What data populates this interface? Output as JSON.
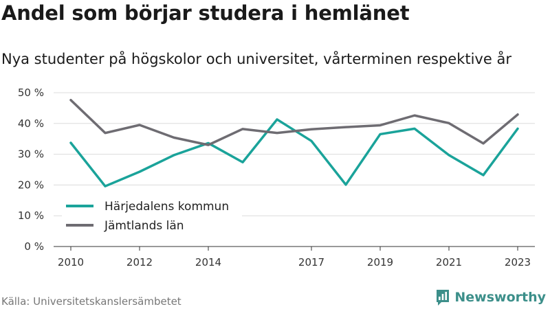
{
  "title": "Andel som börjar studera i hemlänet",
  "subtitle": "Nya studenter på högskolor och universitet, vårterminen respektive år",
  "source": "Källa: Universitetskanslersämbetet",
  "brand": {
    "name": "Newsworthy",
    "color": "#3c8f8a"
  },
  "chart_data": {
    "type": "line",
    "x": [
      2010,
      2011,
      2012,
      2013,
      2014,
      2015,
      2016,
      2017,
      2018,
      2019,
      2020,
      2021,
      2022,
      2023
    ],
    "xticks": [
      {
        "x": 2010,
        "label": "2010"
      },
      {
        "x": 2012,
        "label": "2012"
      },
      {
        "x": 2014,
        "label": "2014"
      },
      {
        "x": 2017,
        "label": "2017"
      },
      {
        "x": 2019,
        "label": "2019"
      },
      {
        "x": 2021,
        "label": "2021"
      },
      {
        "x": 2023,
        "label": "2023"
      }
    ],
    "yticks": [
      {
        "y": 0,
        "label": "0 %"
      },
      {
        "y": 10,
        "label": "10 %"
      },
      {
        "y": 20,
        "label": "20 %"
      },
      {
        "y": 30,
        "label": "30 %"
      },
      {
        "y": 40,
        "label": "40 %"
      },
      {
        "y": 50,
        "label": "50 %"
      }
    ],
    "xlim": [
      2009.5,
      2023.5
    ],
    "ylim": [
      0,
      52
    ],
    "grid": "horizontal",
    "legend_position": "bottom-left",
    "series": [
      {
        "name": "Härjedalens kommun",
        "color": "#1aa39a",
        "values": [
          33.7,
          19.6,
          24.3,
          29.7,
          33.6,
          27.4,
          41.3,
          34.3,
          20.1,
          36.5,
          38.3,
          29.7,
          23.2,
          38.3
        ]
      },
      {
        "name": "Jämtlands län",
        "color": "#6e6c72",
        "values": [
          47.6,
          36.9,
          39.5,
          35.4,
          33.0,
          38.2,
          36.9,
          38.1,
          38.8,
          39.4,
          42.6,
          40.1,
          33.5,
          42.9
        ]
      }
    ]
  }
}
